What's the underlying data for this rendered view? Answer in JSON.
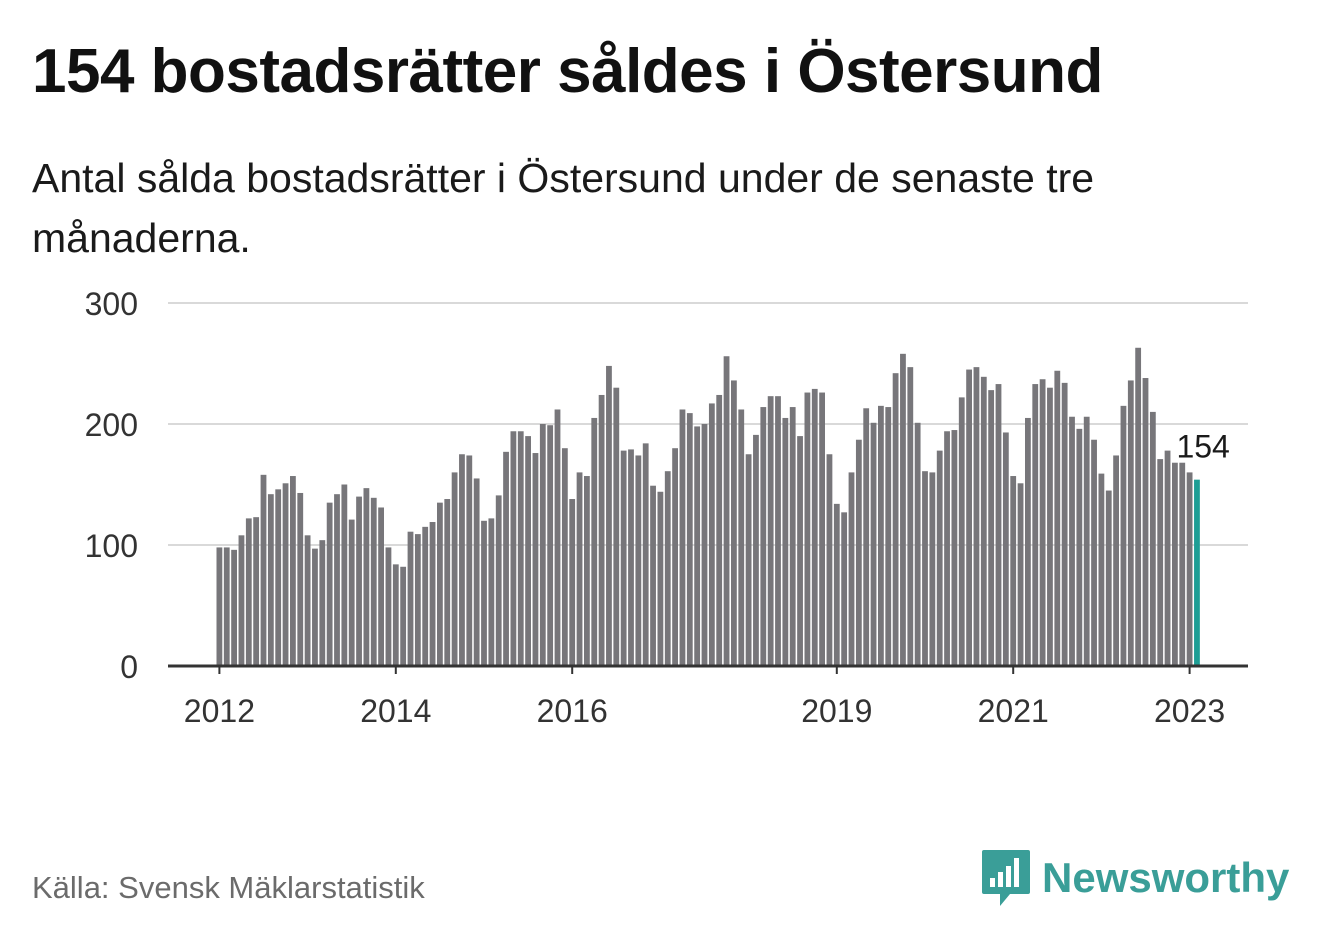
{
  "title": "154 bostadsrätter såldes i Östersund",
  "subtitle": "Antal sålda bostadsrätter i Östersund under de senaste tre månaderna.",
  "source": "Källa: Svensk Mäklarstatistik",
  "brand": "Newsworthy",
  "colors": {
    "bar": "#77767a",
    "highlight": "#1e9e95",
    "grid": "#d9d9d9",
    "axis": "#333333",
    "brand": "#3a9e98"
  },
  "chart_data": {
    "type": "bar",
    "start_label": "2012-01",
    "ylim": [
      0,
      300
    ],
    "yticks": [
      0,
      100,
      200,
      300
    ],
    "xticks": [
      {
        "label": "2012",
        "index": 0
      },
      {
        "label": "2014",
        "index": 24
      },
      {
        "label": "2016",
        "index": 48
      },
      {
        "label": "2019",
        "index": 84
      },
      {
        "label": "2021",
        "index": 108
      },
      {
        "label": "2023",
        "index": 132
      }
    ],
    "values": [
      98,
      98,
      96,
      108,
      122,
      123,
      158,
      142,
      146,
      151,
      157,
      143,
      108,
      97,
      104,
      135,
      142,
      150,
      121,
      140,
      147,
      139,
      131,
      98,
      84,
      82,
      111,
      109,
      115,
      119,
      135,
      138,
      160,
      175,
      174,
      155,
      120,
      122,
      141,
      177,
      194,
      194,
      190,
      176,
      200,
      199,
      212,
      180,
      138,
      160,
      157,
      205,
      224,
      248,
      230,
      178,
      179,
      174,
      184,
      149,
      144,
      161,
      180,
      212,
      209,
      198,
      200,
      217,
      224,
      256,
      236,
      212,
      175,
      191,
      214,
      223,
      223,
      205,
      214,
      190,
      226,
      229,
      226,
      175,
      134,
      127,
      160,
      187,
      213,
      201,
      215,
      214,
      242,
      258,
      247,
      201,
      161,
      160,
      178,
      194,
      195,
      222,
      245,
      247,
      239,
      228,
      233,
      193,
      157,
      151,
      205,
      233,
      237,
      230,
      244,
      234,
      206,
      196,
      206,
      187,
      159,
      145,
      174,
      215,
      236,
      263,
      238,
      210,
      171,
      178,
      168,
      168,
      160,
      154
    ],
    "highlight_index": 133,
    "annotation": "154"
  }
}
